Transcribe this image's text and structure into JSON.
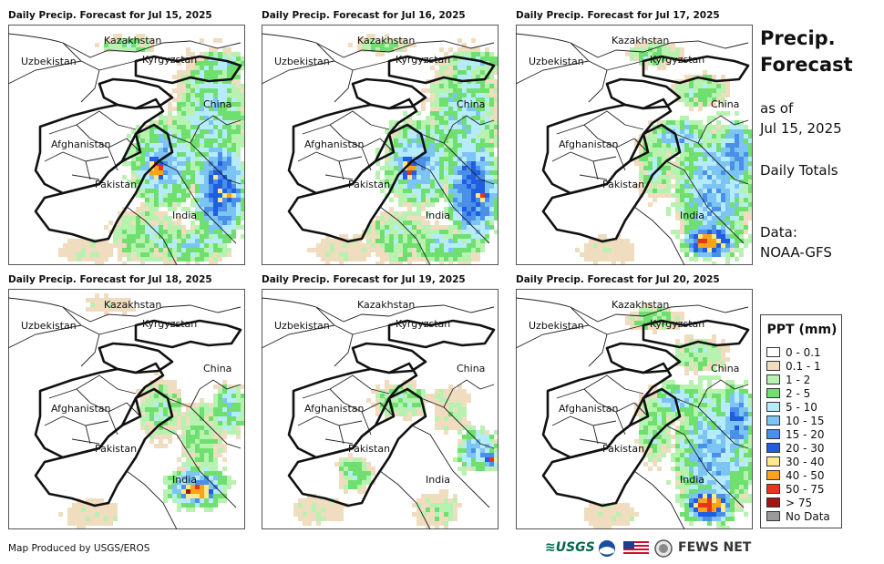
{
  "panels": [
    {
      "title": "Daily Precip. Forecast for Jul 15, 2025",
      "intensity": "high-east"
    },
    {
      "title": "Daily Precip. Forecast for Jul 16, 2025",
      "intensity": "high-east"
    },
    {
      "title": "Daily Precip. Forecast for Jul 17, 2025",
      "intensity": "high-southeast"
    },
    {
      "title": "Daily Precip. Forecast for Jul 18, 2025",
      "intensity": "medium-south"
    },
    {
      "title": "Daily Precip. Forecast for Jul 19, 2025",
      "intensity": "low"
    },
    {
      "title": "Daily Precip. Forecast for Jul 20, 2025",
      "intensity": "high-southeast"
    }
  ],
  "map_labels": {
    "kazakhstan": "Kazakhstan",
    "uzbekistan": "Uzbekistan",
    "kyrgyzstan": "Kyrgyzstan",
    "china": "China",
    "afghanistan": "Afghanistan",
    "pakistan": "Pakistan",
    "india": "India"
  },
  "side": {
    "title_line1": "Precip.",
    "title_line2": "Forecast",
    "asof_line1": "as of",
    "asof_line2": "Jul 15, 2025",
    "totals": "Daily Totals",
    "data_line1": "Data:",
    "data_line2": "NOAA-GFS"
  },
  "legend": {
    "title": "PPT (mm)",
    "items": [
      {
        "label": "0 - 0.1",
        "color": "#ffffff"
      },
      {
        "label": "0.1 - 1",
        "color": "#f0dcbe"
      },
      {
        "label": "1 - 2",
        "color": "#b7f2b0"
      },
      {
        "label": "2 - 5",
        "color": "#6fe06f"
      },
      {
        "label": "5 - 10",
        "color": "#b6ecfa"
      },
      {
        "label": "10 - 15",
        "color": "#7cc4f4"
      },
      {
        "label": "15 - 20",
        "color": "#4a90e8"
      },
      {
        "label": "20 - 30",
        "color": "#1f5ee0"
      },
      {
        "label": "30 - 40",
        "color": "#fce98a"
      },
      {
        "label": "40 - 50",
        "color": "#f9a21a"
      },
      {
        "label": "50 - 75",
        "color": "#e8341c"
      },
      {
        "label": "> 75",
        "color": "#a01515"
      },
      {
        "label": "No Data",
        "color": "#9a9a9a"
      }
    ]
  },
  "credit": "Map Produced by USGS/EROS",
  "logos": {
    "usgs": "≋USGS",
    "fewsnet": "FEWS NET"
  }
}
